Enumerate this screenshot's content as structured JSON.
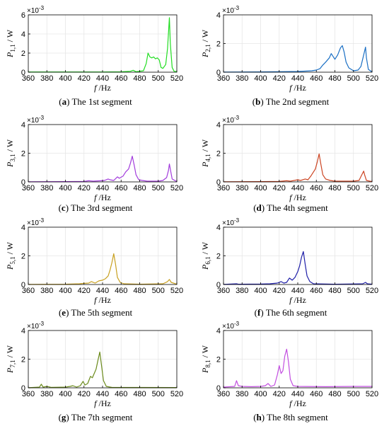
{
  "chart_data": [
    {
      "type": "line",
      "caption_letter": "a",
      "caption_text": "The 1st segment",
      "xlabel": "f /Hz",
      "ylabel_main": "P",
      "ylabel_sub": "1,1",
      "ylabel_unit": "/ W",
      "exponent": "x10^-3",
      "xlim": [
        360,
        520
      ],
      "ylim": [
        0,
        6
      ],
      "xticks": [
        360,
        380,
        400,
        420,
        440,
        460,
        480,
        500,
        520
      ],
      "yticks": [
        0,
        2,
        4,
        6
      ],
      "color": "#22dd22",
      "points": [
        [
          360,
          0.02
        ],
        [
          440,
          0.02
        ],
        [
          460,
          0.04
        ],
        [
          470,
          0.1
        ],
        [
          473,
          0.2
        ],
        [
          476,
          0.05
        ],
        [
          484,
          0.15
        ],
        [
          487,
          0.9
        ],
        [
          489,
          2.0
        ],
        [
          491,
          1.6
        ],
        [
          493,
          1.5
        ],
        [
          495,
          1.6
        ],
        [
          497,
          1.4
        ],
        [
          499,
          1.5
        ],
        [
          501,
          1.3
        ],
        [
          503,
          0.5
        ],
        [
          505,
          0.4
        ],
        [
          508,
          0.8
        ],
        [
          510,
          2.5
        ],
        [
          512,
          5.7
        ],
        [
          513,
          3.0
        ],
        [
          515,
          0.5
        ],
        [
          517,
          0.1
        ],
        [
          520,
          0.05
        ]
      ]
    },
    {
      "type": "line",
      "caption_letter": "b",
      "caption_text": "The 2nd segment",
      "xlabel": "f /Hz",
      "ylabel_main": "P",
      "ylabel_sub": "2,1",
      "ylabel_unit": "/ W",
      "exponent": "x10^-3",
      "xlim": [
        360,
        520
      ],
      "ylim": [
        0,
        4
      ],
      "xticks": [
        360,
        380,
        400,
        420,
        440,
        460,
        480,
        500,
        520
      ],
      "yticks": [
        0,
        2,
        4
      ],
      "color": "#1a6fc4",
      "points": [
        [
          360,
          0.01
        ],
        [
          400,
          0.02
        ],
        [
          420,
          0.03
        ],
        [
          440,
          0.05
        ],
        [
          450,
          0.08
        ],
        [
          455,
          0.1
        ],
        [
          460,
          0.15
        ],
        [
          464,
          0.25
        ],
        [
          467,
          0.5
        ],
        [
          470,
          0.7
        ],
        [
          474,
          1.0
        ],
        [
          476,
          1.3
        ],
        [
          478,
          1.1
        ],
        [
          480,
          0.9
        ],
        [
          483,
          1.2
        ],
        [
          486,
          1.7
        ],
        [
          488,
          1.85
        ],
        [
          490,
          1.4
        ],
        [
          492,
          0.7
        ],
        [
          495,
          0.3
        ],
        [
          500,
          0.1
        ],
        [
          505,
          0.15
        ],
        [
          508,
          0.4
        ],
        [
          511,
          1.2
        ],
        [
          513,
          1.75
        ],
        [
          514,
          1.0
        ],
        [
          516,
          0.2
        ],
        [
          520,
          0.02
        ]
      ]
    },
    {
      "type": "line",
      "caption_letter": "c",
      "caption_text": "The 3rd segment",
      "xlabel": "f /Hz",
      "ylabel_main": "P",
      "ylabel_sub": "3,1",
      "ylabel_unit": "/ W",
      "exponent": "x10^-3",
      "xlim": [
        360,
        520
      ],
      "ylim": [
        0,
        4
      ],
      "xticks": [
        360,
        380,
        400,
        420,
        440,
        460,
        480,
        500,
        520
      ],
      "yticks": [
        0,
        2,
        4
      ],
      "color": "#a23cdc",
      "points": [
        [
          360,
          0.01
        ],
        [
          400,
          0.02
        ],
        [
          420,
          0.03
        ],
        [
          425,
          0.08
        ],
        [
          430,
          0.05
        ],
        [
          438,
          0.08
        ],
        [
          442,
          0.1
        ],
        [
          446,
          0.2
        ],
        [
          448,
          0.15
        ],
        [
          452,
          0.1
        ],
        [
          456,
          0.35
        ],
        [
          458,
          0.25
        ],
        [
          462,
          0.4
        ],
        [
          465,
          0.7
        ],
        [
          468,
          0.9
        ],
        [
          470,
          1.3
        ],
        [
          472,
          1.8
        ],
        [
          474,
          1.2
        ],
        [
          476,
          0.5
        ],
        [
          479,
          0.15
        ],
        [
          483,
          0.1
        ],
        [
          488,
          0.05
        ],
        [
          500,
          0.05
        ],
        [
          505,
          0.1
        ],
        [
          509,
          0.3
        ],
        [
          511,
          0.8
        ],
        [
          512,
          1.25
        ],
        [
          513,
          0.9
        ],
        [
          515,
          0.2
        ],
        [
          520,
          0.02
        ]
      ]
    },
    {
      "type": "line",
      "caption_letter": "d",
      "caption_text": "The 4th segment",
      "xlabel": "f /Hz",
      "ylabel_main": "P",
      "ylabel_sub": "4,1",
      "ylabel_unit": "/ W",
      "exponent": "x10^-3",
      "xlim": [
        360,
        520
      ],
      "ylim": [
        0,
        4
      ],
      "xticks": [
        360,
        380,
        400,
        420,
        440,
        460,
        480,
        500,
        520
      ],
      "yticks": [
        0,
        2,
        4
      ],
      "color": "#cc4422",
      "points": [
        [
          360,
          0.01
        ],
        [
          400,
          0.02
        ],
        [
          420,
          0.03
        ],
        [
          428,
          0.08
        ],
        [
          432,
          0.05
        ],
        [
          440,
          0.15
        ],
        [
          443,
          0.1
        ],
        [
          448,
          0.2
        ],
        [
          451,
          0.15
        ],
        [
          454,
          0.4
        ],
        [
          456,
          0.6
        ],
        [
          459,
          0.9
        ],
        [
          461,
          1.4
        ],
        [
          463,
          1.95
        ],
        [
          465,
          1.2
        ],
        [
          467,
          0.5
        ],
        [
          470,
          0.2
        ],
        [
          475,
          0.1
        ],
        [
          480,
          0.05
        ],
        [
          500,
          0.05
        ],
        [
          506,
          0.1
        ],
        [
          509,
          0.5
        ],
        [
          511,
          0.75
        ],
        [
          512,
          0.5
        ],
        [
          514,
          0.1
        ],
        [
          520,
          0.02
        ]
      ]
    },
    {
      "type": "line",
      "caption_letter": "e",
      "caption_text": "The 5th segment",
      "xlabel": "f /Hz",
      "ylabel_main": "P",
      "ylabel_sub": "5,1",
      "ylabel_unit": "/ W",
      "exponent": "x10^-3",
      "xlim": [
        360,
        520
      ],
      "ylim": [
        0,
        4
      ],
      "xticks": [
        360,
        380,
        400,
        420,
        440,
        460,
        480,
        500,
        520
      ],
      "yticks": [
        0,
        2,
        4
      ],
      "color": "#c8a020",
      "points": [
        [
          360,
          0.01
        ],
        [
          400,
          0.02
        ],
        [
          415,
          0.05
        ],
        [
          420,
          0.08
        ],
        [
          425,
          0.1
        ],
        [
          428,
          0.2
        ],
        [
          432,
          0.1
        ],
        [
          436,
          0.25
        ],
        [
          440,
          0.3
        ],
        [
          443,
          0.4
        ],
        [
          446,
          0.6
        ],
        [
          448,
          1.0
        ],
        [
          450,
          1.5
        ],
        [
          452,
          2.15
        ],
        [
          454,
          1.4
        ],
        [
          456,
          0.5
        ],
        [
          459,
          0.15
        ],
        [
          463,
          0.05
        ],
        [
          480,
          0.02
        ],
        [
          505,
          0.05
        ],
        [
          510,
          0.2
        ],
        [
          512,
          0.35
        ],
        [
          514,
          0.15
        ],
        [
          520,
          0.02
        ]
      ]
    },
    {
      "type": "line",
      "caption_letter": "f",
      "caption_text": "The 6th segment",
      "xlabel": "f /Hz",
      "ylabel_main": "P",
      "ylabel_sub": "6,1",
      "ylabel_unit": "/ W",
      "exponent": "x10^-3",
      "xlim": [
        360,
        520
      ],
      "ylim": [
        0,
        4
      ],
      "xticks": [
        360,
        380,
        400,
        420,
        440,
        460,
        480,
        500,
        520
      ],
      "yticks": [
        0,
        2,
        4
      ],
      "color": "#1f1fa8",
      "points": [
        [
          360,
          0.01
        ],
        [
          374,
          0.05
        ],
        [
          376,
          0.02
        ],
        [
          400,
          0.03
        ],
        [
          410,
          0.05
        ],
        [
          418,
          0.1
        ],
        [
          422,
          0.2
        ],
        [
          425,
          0.1
        ],
        [
          428,
          0.15
        ],
        [
          431,
          0.45
        ],
        [
          434,
          0.3
        ],
        [
          437,
          0.5
        ],
        [
          440,
          0.9
        ],
        [
          442,
          1.3
        ],
        [
          444,
          1.9
        ],
        [
          446,
          2.3
        ],
        [
          448,
          1.4
        ],
        [
          450,
          0.6
        ],
        [
          453,
          0.2
        ],
        [
          457,
          0.05
        ],
        [
          480,
          0.02
        ],
        [
          510,
          0.05
        ],
        [
          513,
          0.15
        ],
        [
          515,
          0.05
        ],
        [
          520,
          0.02
        ]
      ]
    },
    {
      "type": "line",
      "caption_letter": "g",
      "caption_text": "The 7th segment",
      "xlabel": "f /Hz",
      "ylabel_main": "P",
      "ylabel_sub": "7,1",
      "ylabel_unit": "/ W",
      "exponent": "x10^-3",
      "xlim": [
        360,
        520
      ],
      "ylim": [
        0,
        4
      ],
      "xticks": [
        360,
        380,
        400,
        420,
        440,
        460,
        480,
        500,
        520
      ],
      "yticks": [
        0,
        2,
        4
      ],
      "color": "#6a8a1a",
      "points": [
        [
          360,
          0.01
        ],
        [
          372,
          0.05
        ],
        [
          374,
          0.25
        ],
        [
          376,
          0.05
        ],
        [
          380,
          0.1
        ],
        [
          385,
          0.03
        ],
        [
          400,
          0.05
        ],
        [
          405,
          0.1
        ],
        [
          408,
          0.15
        ],
        [
          412,
          0.05
        ],
        [
          416,
          0.15
        ],
        [
          419,
          0.45
        ],
        [
          421,
          0.2
        ],
        [
          424,
          0.3
        ],
        [
          427,
          0.8
        ],
        [
          429,
          0.7
        ],
        [
          431,
          1.0
        ],
        [
          433,
          1.3
        ],
        [
          435,
          1.9
        ],
        [
          437,
          2.5
        ],
        [
          439,
          1.5
        ],
        [
          441,
          0.5
        ],
        [
          444,
          0.1
        ],
        [
          450,
          0.03
        ],
        [
          520,
          0.02
        ]
      ]
    },
    {
      "type": "line",
      "caption_letter": "h",
      "caption_text": "The 8th segment",
      "xlabel": "f /Hz",
      "ylabel_main": "P",
      "ylabel_sub": "8,1",
      "ylabel_unit": "/ W",
      "exponent": "x10^-3",
      "xlim": [
        360,
        520
      ],
      "ylim": [
        0,
        4
      ],
      "xticks": [
        360,
        380,
        400,
        420,
        440,
        460,
        480,
        500,
        520
      ],
      "yticks": [
        0,
        2,
        4
      ],
      "color": "#c24ee0",
      "points": [
        [
          360,
          0.05
        ],
        [
          372,
          0.1
        ],
        [
          374,
          0.5
        ],
        [
          376,
          0.15
        ],
        [
          380,
          0.1
        ],
        [
          390,
          0.08
        ],
        [
          400,
          0.1
        ],
        [
          405,
          0.15
        ],
        [
          408,
          0.3
        ],
        [
          411,
          0.1
        ],
        [
          415,
          0.2
        ],
        [
          418,
          0.9
        ],
        [
          420,
          1.55
        ],
        [
          422,
          1.0
        ],
        [
          424,
          1.2
        ],
        [
          426,
          2.2
        ],
        [
          428,
          2.7
        ],
        [
          430,
          1.8
        ],
        [
          432,
          0.6
        ],
        [
          435,
          0.15
        ],
        [
          440,
          0.1
        ],
        [
          470,
          0.08
        ],
        [
          500,
          0.1
        ],
        [
          520,
          0.1
        ]
      ]
    }
  ]
}
